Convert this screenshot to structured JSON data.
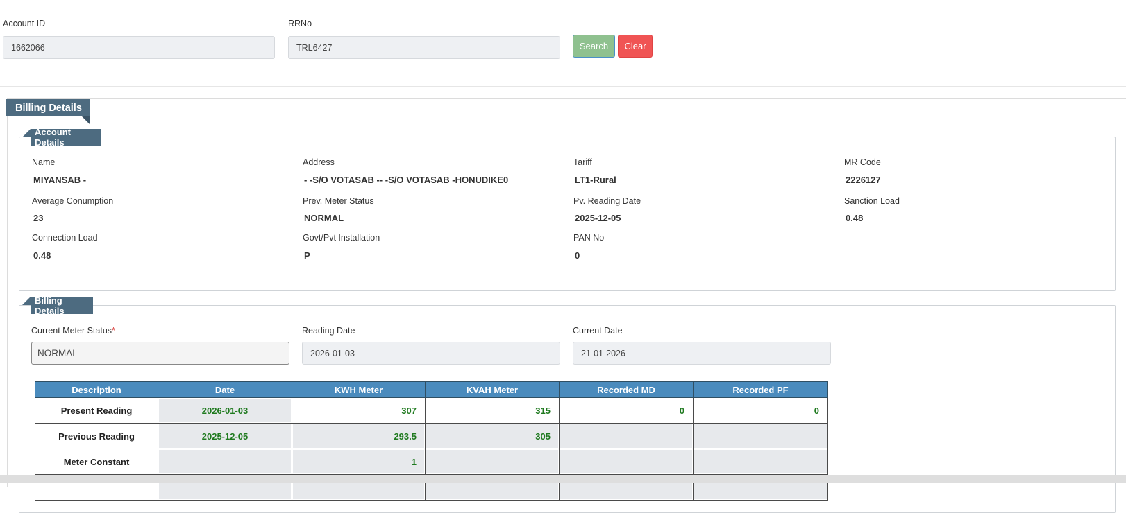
{
  "search": {
    "fields": [
      {
        "label": "Account ID",
        "value": "1662066"
      },
      {
        "label": "RRNo",
        "value": "TRL6427"
      }
    ],
    "buttons": [
      "Search",
      "Clear"
    ]
  },
  "panel_title": "Billing Details",
  "account_details": {
    "title": "Account Details",
    "fields": [
      {
        "label": "Name",
        "value": "MIYANSAB -"
      },
      {
        "label": "Address",
        "value": "- -S/O VOTASAB -- -S/O VOTASAB -HONUDIKE0"
      },
      {
        "label": "Tariff",
        "value": "LT1-Rural"
      },
      {
        "label": "MR Code",
        "value": "2226127"
      },
      {
        "label": "Average Conumption",
        "value": "23"
      },
      {
        "label": "Prev. Meter Status",
        "value": "NORMAL"
      },
      {
        "label": "Pv. Reading Date",
        "value": "2025-12-05"
      },
      {
        "label": "Sanction Load",
        "value": "0.48"
      },
      {
        "label": "Connection Load",
        "value": "0.48"
      },
      {
        "label": "Govt/Pvt Installation",
        "value": "P"
      },
      {
        "label": "PAN No",
        "value": "0"
      }
    ]
  },
  "billing_details": {
    "title": "Billing Details",
    "fields": [
      {
        "label": "Current Meter Status",
        "required_mark": "*",
        "value": "NORMAL"
      },
      {
        "label": "Reading Date",
        "value": "2026-01-03"
      },
      {
        "label": "Current Date",
        "value": "21-01-2026"
      }
    ],
    "table": {
      "columns": [
        "Description",
        "Date",
        "KWH Meter",
        "KVAH Meter",
        "Recorded MD",
        "Recorded PF"
      ],
      "rows": [
        [
          "Present Reading",
          "2026-01-03",
          "307",
          "315",
          "0",
          "0"
        ],
        [
          "Previous Reading",
          "2025-12-05",
          "293.5",
          "305",
          null,
          null
        ],
        [
          "Meter Constant",
          null,
          "1",
          null,
          null,
          null
        ]
      ]
    }
  }
}
